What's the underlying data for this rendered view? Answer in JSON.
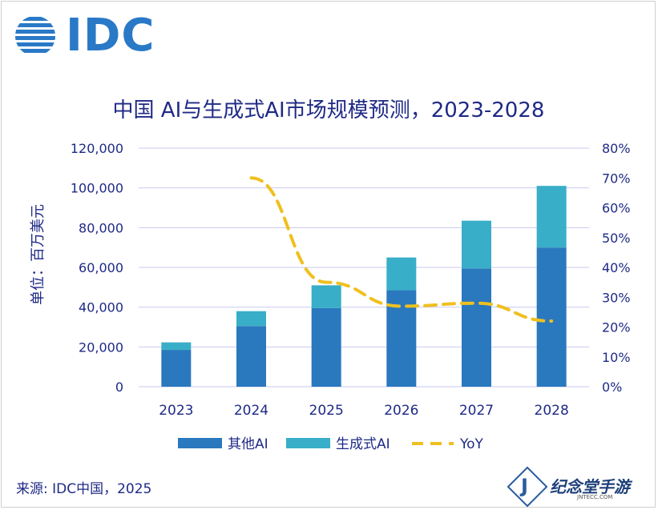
{
  "logo": {
    "text": "IDC"
  },
  "chart_data": {
    "type": "bar",
    "title": "中国 AI与生成式AI市场规模预测，2023-2028",
    "ylabel": "单位：百万美元",
    "categories": [
      "2023",
      "2024",
      "2025",
      "2026",
      "2027",
      "2028"
    ],
    "series": [
      {
        "name": "其他AI",
        "kind": "stacked-bar",
        "color": "#2a78be",
        "values": [
          18500,
          30500,
          39500,
          48500,
          59500,
          70000
        ]
      },
      {
        "name": "生成式AI",
        "kind": "stacked-bar",
        "color": "#39aec8",
        "values": [
          3800,
          7500,
          11500,
          16500,
          24000,
          31000
        ]
      },
      {
        "name": "YoY",
        "kind": "line",
        "axis": "right",
        "style": "dashed",
        "color": "#efc020",
        "values": [
          null,
          0.7,
          0.35,
          0.27,
          0.28,
          0.22
        ]
      }
    ],
    "ylim_left": [
      0,
      120000
    ],
    "yticks_left": [
      "0",
      "20,000",
      "40,000",
      "60,000",
      "80,000",
      "100,000",
      "120,000"
    ],
    "ylim_right": [
      0,
      0.8
    ],
    "yticks_right": [
      "0%",
      "10%",
      "20%",
      "30%",
      "40%",
      "50%",
      "60%",
      "70%",
      "80%"
    ],
    "grid": true,
    "legend_position": "bottom"
  },
  "source": "来源: IDC中国，2025",
  "watermark": {
    "title": "纪念堂手游",
    "sub": "JNTECC.COM",
    "letter": "J"
  }
}
